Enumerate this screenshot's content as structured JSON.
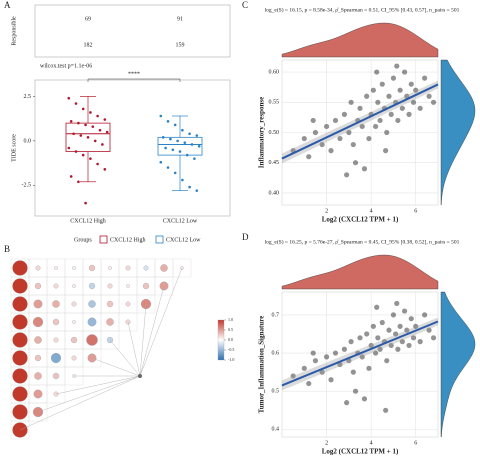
{
  "chart_data": [
    {
      "type": "count-table",
      "panel": "A",
      "ylabel": "Responsible",
      "counts": [
        [
          69,
          91
        ],
        [
          182,
          159
        ]
      ]
    },
    {
      "type": "box",
      "subtitle": "wilcox.test p=1.1e-06",
      "significance": "****",
      "ylabel": "TIDE score",
      "categories": [
        "CXCL12 High",
        "CXCL12 Low"
      ],
      "legend_title": "Groups",
      "ylim": [
        -4,
        3.2
      ],
      "yticks": [
        2.5,
        {
          "value": 0,
          "label": "0.0"
        },
        -2.5
      ],
      "series": [
        {
          "name": "CXCL12 High",
          "color": "#b2182b",
          "stats": {
            "min": -2.3,
            "q1": -0.6,
            "median": 0.4,
            "q3": 1.0,
            "max": 2.5
          },
          "points": [
            2.4,
            2.1,
            1.8,
            1.6,
            1.4,
            1.2,
            1.1,
            1.0,
            0.9,
            0.8,
            0.6,
            0.5,
            0.4,
            0.3,
            0.2,
            0.0,
            -0.2,
            -0.4,
            -0.6,
            -0.8,
            -1.0,
            -1.3,
            -1.6,
            -2.0,
            -2.3,
            -3.5
          ]
        },
        {
          "name": "CXCL12 Low",
          "color": "#2b83c6",
          "stats": {
            "min": -2.8,
            "q1": -0.8,
            "median": -0.2,
            "q3": 0.2,
            "max": 1.4
          },
          "points": [
            1.4,
            1.1,
            0.9,
            0.6,
            0.4,
            0.3,
            0.2,
            0.1,
            0.0,
            -0.1,
            -0.2,
            -0.3,
            -0.4,
            -0.5,
            -0.6,
            -0.8,
            -1.0,
            -1.2,
            -1.5,
            -1.8,
            -2.2,
            -2.6,
            -2.8
          ]
        }
      ]
    },
    {
      "type": "heatmap",
      "panel": "B",
      "colors": {
        "low": "#2e6fb0",
        "high": "#c0392b"
      },
      "colorbar_ticks": [
        {
          "value": 1,
          "label": "1.0"
        },
        0.5,
        {
          "value": 0,
          "label": "0.0"
        },
        -0.5,
        {
          "value": -1,
          "label": "-1.0"
        }
      ],
      "values": [
        [
          1,
          0.2,
          0.1,
          -0.1,
          0.3,
          0.1,
          0.2,
          -0.2,
          0.4,
          0.1
        ],
        [
          1,
          0.3,
          0.2,
          0.1,
          -0.3,
          0.2,
          0.1,
          0.3,
          0.5
        ],
        [
          1,
          0.5,
          0.4,
          0.2,
          -0.4,
          0.3,
          0.2,
          0.6
        ],
        [
          1,
          0.6,
          0.3,
          0.1,
          -0.5,
          0.4,
          0.2
        ],
        [
          1,
          0.4,
          0.2,
          0.3,
          0.7,
          -0.3
        ],
        [
          1,
          0.3,
          -0.6,
          0.2,
          0.5
        ],
        [
          1,
          0.4,
          0.3,
          0.1
        ],
        [
          1,
          0.5,
          0.2
        ],
        [
          1,
          0.6
        ],
        [
          1
        ]
      ]
    },
    {
      "type": "scatter",
      "panel": "C",
      "subtitle": "log_e(S) = 16.15, p = 8.58e-34, ρ̂_Spearman = 0.51, CI_95% [0.43, 0.57], n_pairs = 501",
      "xlabel": "Log2 (CXCL12 TPM + 1)",
      "ylabel": "Inflammatory_response",
      "xlim": [
        0,
        7
      ],
      "xticks": [
        2,
        4,
        6
      ],
      "ylim": [
        0.38,
        0.62
      ],
      "yticks": [
        {
          "value": 0.4,
          "label": "0.40"
        },
        0.45,
        {
          "value": 0.5,
          "label": "0.50"
        },
        0.55,
        {
          "value": 0.6,
          "label": "0.60"
        }
      ],
      "point_color": "#3a3a3a",
      "line_color": "#2a5aa8",
      "top_density_color": "#cf6a62",
      "right_density_color": "#3a8fc2",
      "x": [
        0.5,
        1.0,
        1.2,
        1.5,
        1.8,
        2.0,
        2.2,
        2.4,
        2.6,
        2.8,
        3.0,
        3.1,
        3.2,
        3.4,
        3.5,
        3.6,
        3.8,
        3.9,
        4.0,
        4.1,
        4.2,
        4.3,
        4.4,
        4.5,
        4.6,
        4.7,
        4.8,
        4.9,
        5.0,
        5.1,
        5.2,
        5.3,
        5.4,
        5.5,
        5.6,
        5.7,
        5.8,
        5.9,
        6.0,
        6.2,
        6.4,
        6.6,
        3.3,
        3.7,
        4.25,
        4.65,
        5.15,
        2.9,
        1.4,
        6.8
      ],
      "y": [
        0.47,
        0.49,
        0.46,
        0.5,
        0.48,
        0.51,
        0.47,
        0.52,
        0.49,
        0.53,
        0.5,
        0.55,
        0.48,
        0.52,
        0.54,
        0.51,
        0.56,
        0.49,
        0.53,
        0.57,
        0.51,
        0.55,
        0.52,
        0.58,
        0.54,
        0.5,
        0.56,
        0.53,
        0.59,
        0.55,
        0.52,
        0.57,
        0.54,
        0.6,
        0.56,
        0.53,
        0.58,
        0.55,
        0.57,
        0.54,
        0.59,
        0.56,
        0.45,
        0.44,
        0.6,
        0.47,
        0.61,
        0.43,
        0.52,
        0.55
      ]
    },
    {
      "type": "scatter",
      "panel": "D",
      "subtitle": "log_e(S) = 16.25, p = 5.76e-27, ρ̂_Spearman = 0.45, CI_95% [0.38, 0.52], n_pairs = 501",
      "xlabel": "Log2 (CXCL12 TPM + 1)",
      "ylabel": "Tumor_Inflammation_Signature",
      "xlim": [
        0,
        7
      ],
      "xticks": [
        2,
        4,
        6
      ],
      "ylim": [
        0.38,
        0.76
      ],
      "yticks": [
        0.4,
        0.5,
        0.6,
        0.7
      ],
      "point_color": "#3a3a3a",
      "line_color": "#2a5aa8",
      "top_density_color": "#cf6a62",
      "right_density_color": "#3a8fc2",
      "x": [
        0.5,
        1.0,
        1.2,
        1.5,
        1.8,
        2.0,
        2.2,
        2.4,
        2.6,
        2.8,
        3.0,
        3.1,
        3.2,
        3.4,
        3.5,
        3.6,
        3.8,
        3.9,
        4.0,
        4.1,
        4.2,
        4.3,
        4.4,
        4.5,
        4.6,
        4.7,
        4.8,
        4.9,
        5.0,
        5.1,
        5.2,
        5.3,
        5.4,
        5.5,
        5.6,
        5.7,
        5.8,
        5.9,
        6.0,
        6.2,
        6.4,
        6.6,
        3.3,
        3.7,
        4.25,
        4.65,
        5.15,
        2.9,
        1.4,
        6.8
      ],
      "y": [
        0.54,
        0.56,
        0.52,
        0.58,
        0.55,
        0.59,
        0.53,
        0.6,
        0.57,
        0.61,
        0.58,
        0.63,
        0.55,
        0.6,
        0.64,
        0.59,
        0.65,
        0.56,
        0.62,
        0.67,
        0.6,
        0.64,
        0.61,
        0.68,
        0.63,
        0.58,
        0.66,
        0.62,
        0.7,
        0.65,
        0.61,
        0.67,
        0.63,
        0.71,
        0.66,
        0.62,
        0.69,
        0.64,
        0.67,
        0.63,
        0.7,
        0.66,
        0.5,
        0.48,
        0.72,
        0.45,
        0.73,
        0.47,
        0.6,
        0.64
      ]
    }
  ]
}
